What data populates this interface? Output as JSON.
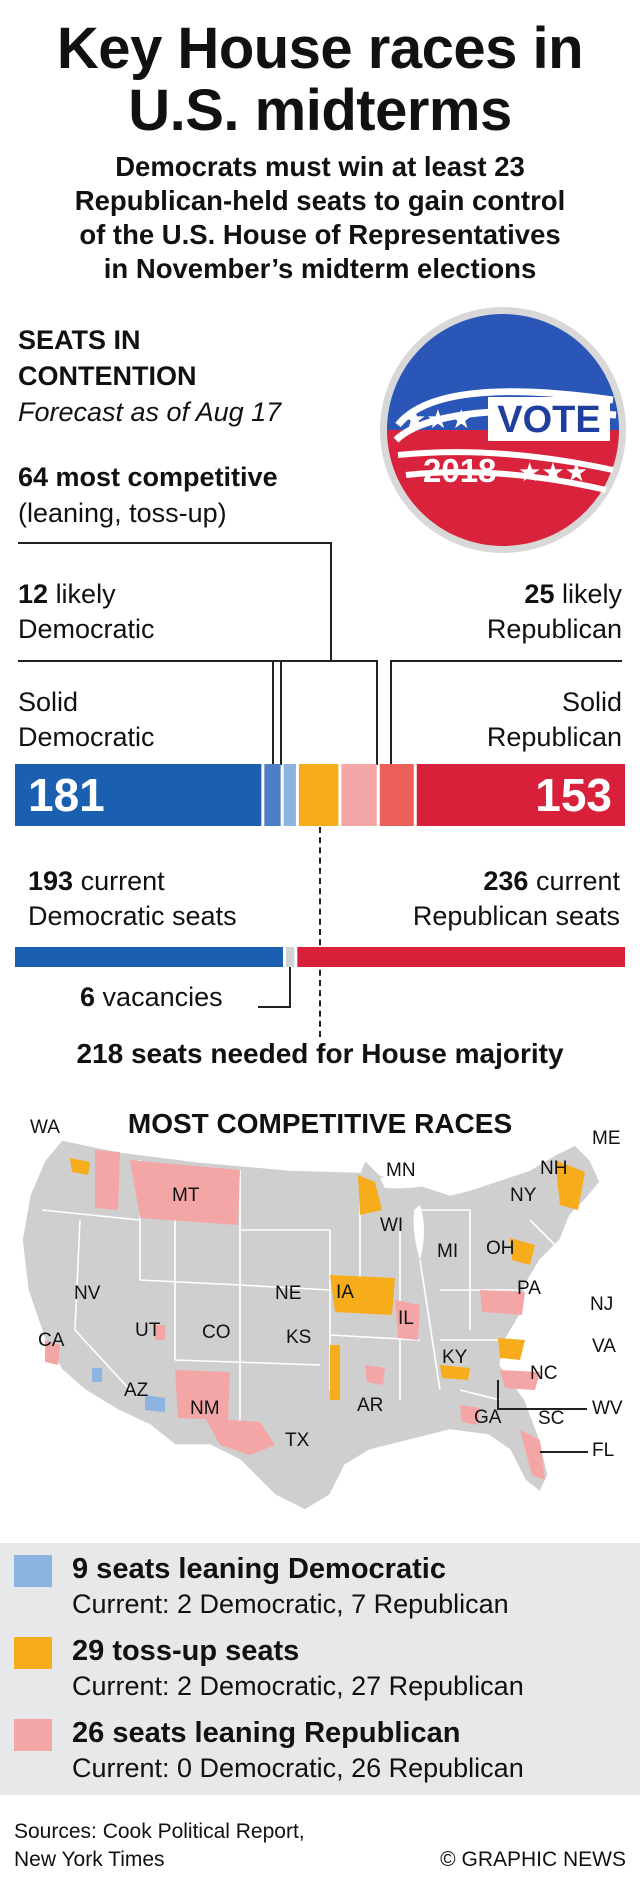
{
  "title": {
    "line1": "Key House races in",
    "line2": "U.S. midterms"
  },
  "subtitle": [
    "Democrats must win at least 23",
    "Republican-held seats to gain control",
    "of the U.S. House of Representatives",
    "in November’s midterm elections"
  ],
  "seats": {
    "heading1": "SEATS IN",
    "heading2": "CONTENTION",
    "forecast": "Forecast as of Aug 17"
  },
  "badge": {
    "word": "VOTE",
    "year": "2018"
  },
  "annotations": {
    "competitive_bold": "64 most competitive",
    "competitive_sub": "(leaning, toss-up)",
    "likely_dem_num": "12",
    "likely_dem_word": "likely",
    "likely_dem_line2": "Democratic",
    "likely_rep_num": "25",
    "likely_rep_word": "likely",
    "likely_rep_line2": "Republican",
    "solid_dem_1": "Solid",
    "solid_dem_2": "Democratic",
    "solid_rep_1": "Solid",
    "solid_rep_2": "Republican",
    "current_dem_num": "193",
    "current_dem_word": "current",
    "current_dem_line2": "Democratic seats",
    "current_rep_num": "236",
    "current_rep_word": "current",
    "current_rep_line2": "Republican seats",
    "vacancies_num": "6",
    "vacancies_word": "vacancies",
    "majority": "218 seats needed for House majority"
  },
  "colors": {
    "solid_dem": "#1b5fb0",
    "likely_dem": "#4d7fc4",
    "lean_dem": "#8db3e0",
    "tossup": "#f7ac1c",
    "lean_rep": "#f4a6a6",
    "likely_rep": "#ec5f5b",
    "solid_rep": "#d9203a",
    "vacancy": "#cfd3d6",
    "land": "#cfcfcf"
  },
  "chart_data": [
    {
      "type": "bar",
      "title": "SEATS IN CONTENTION",
      "subtitle": "Forecast as of Aug 17",
      "orientation": "horizontal-stacked",
      "total": 435,
      "categories": [
        "Solid Democratic",
        "Likely Democratic",
        "Leaning Democratic",
        "Toss-up",
        "Leaning Republican",
        "Likely Republican",
        "Solid Republican"
      ],
      "values": [
        181,
        12,
        9,
        29,
        26,
        25,
        153
      ],
      "value_labels": {
        "solid_dem": "181",
        "solid_rep": "153"
      },
      "majority_threshold": 218
    },
    {
      "type": "bar",
      "title": "Current seats",
      "orientation": "horizontal-stacked",
      "categories": [
        "Democratic",
        "Vacancies",
        "Republican"
      ],
      "values": [
        193,
        6,
        236
      ]
    }
  ],
  "map": {
    "heading": "MOST COMPETITIVE RACES",
    "states": [
      "WA",
      "MT",
      "MN",
      "ME",
      "NH",
      "NY",
      "WI",
      "MI",
      "OH",
      "PA",
      "NJ",
      "NV",
      "IA",
      "NE",
      "IL",
      "UT",
      "CO",
      "KS",
      "KY",
      "VA",
      "CA",
      "NC",
      "AZ",
      "NM",
      "AR",
      "TX",
      "GA",
      "SC",
      "WV",
      "FL"
    ]
  },
  "legend": [
    {
      "title": "9 seats leaning Democratic",
      "sub": "Current: 2 Democratic, 7 Republican"
    },
    {
      "title": "29 toss-up seats",
      "sub": "Current: 2 Democratic, 27 Republican"
    },
    {
      "title": "26 seats leaning Republican",
      "sub": "Current: 0 Democratic, 26 Republican"
    }
  ],
  "footer": {
    "sources1": "Sources: Cook Political Report,",
    "sources2": "New York Times",
    "credit": "© GRAPHIC NEWS"
  }
}
